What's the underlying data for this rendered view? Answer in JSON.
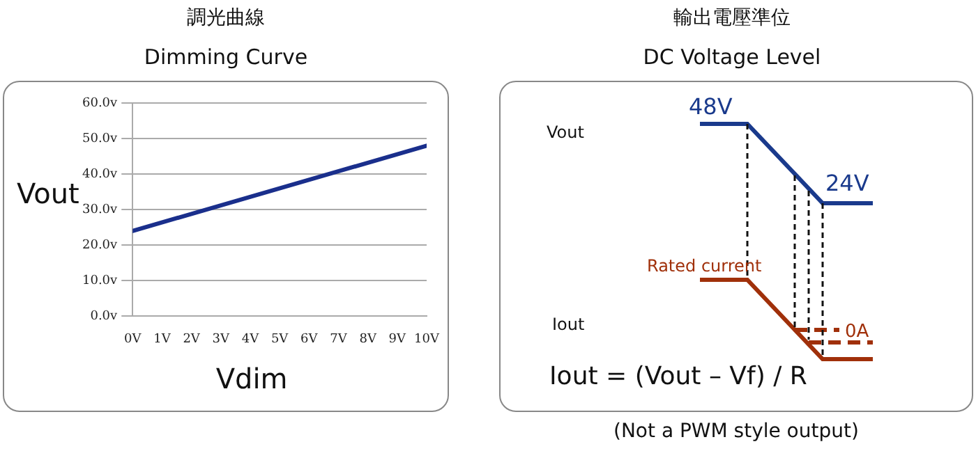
{
  "chart_data": [
    {
      "type": "line",
      "title": "調光曲線",
      "subtitle": "Dimming Curve",
      "xlabel": "Vdim",
      "ylabel": "Vout",
      "x": [
        0,
        10
      ],
      "series": [
        {
          "color": "#1a2f8c",
          "values": [
            24,
            48
          ]
        }
      ],
      "xlim": [
        0,
        10
      ],
      "xticks": [
        {
          "value": 0,
          "label": "0V"
        },
        {
          "value": 1,
          "label": "1V"
        },
        {
          "value": 2,
          "label": "2V"
        },
        {
          "value": 3,
          "label": "3V"
        },
        {
          "value": 4,
          "label": "4V"
        },
        {
          "value": 5,
          "label": "5V"
        },
        {
          "value": 6,
          "label": "6V"
        },
        {
          "value": 7,
          "label": "7V"
        },
        {
          "value": 8,
          "label": "8V"
        },
        {
          "value": 9,
          "label": "9V"
        },
        {
          "value": 10,
          "label": "10V"
        }
      ],
      "ylim": [
        0,
        60
      ],
      "yticks": [
        {
          "value": 0,
          "label": "0.0v"
        },
        {
          "value": 10,
          "label": "10.0v"
        },
        {
          "value": 20,
          "label": "20.0v"
        },
        {
          "value": 30,
          "label": "30.0v"
        },
        {
          "value": 40,
          "label": "40.0v"
        },
        {
          "value": 50,
          "label": "50.0v"
        },
        {
          "value": 60,
          "label": "60.0v"
        }
      ],
      "grid": "y",
      "legend": false,
      "marker": "none"
    },
    {
      "type": "other",
      "title": "輸出電壓準位",
      "subtitle": "DC Voltage Level",
      "annotations": [
        "Vout",
        "48V",
        "24V",
        "Rated current",
        "Iout",
        "0A",
        "Iout = (Vout – Vf) / R",
        "(Not a PWM style output)"
      ]
    }
  ]
}
